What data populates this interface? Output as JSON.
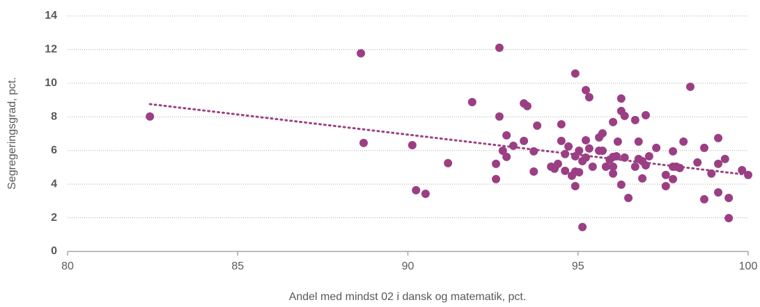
{
  "chart_data": {
    "type": "scatter",
    "x_label": "Andel med mindst 02 i dansk og matematik, pct.",
    "y_label": "Segregeringsgrad, pct.",
    "color": "#9b3f84",
    "grid": true,
    "xlim": [
      80,
      100
    ],
    "xticks": [
      80,
      85,
      90,
      95,
      100
    ],
    "ylim": [
      0,
      14
    ],
    "yticks": [
      0,
      2,
      4,
      6,
      8,
      10,
      12,
      14
    ],
    "x": [
      82.42,
      88.62,
      88.7,
      90.13,
      90.24,
      90.52,
      91.18,
      91.89,
      92.69,
      92.69,
      92.59,
      92.59,
      92.79,
      92.9,
      92.9,
      93.1,
      93.41,
      93.51,
      93.41,
      93.7,
      93.7,
      93.8,
      94.51,
      94.51,
      94.62,
      94.21,
      94.31,
      94.41,
      94.62,
      94.72,
      94.82,
      94.92,
      94.92,
      94.92,
      95.03,
      95.13,
      94.92,
      95.03,
      95.13,
      95.23,
      95.33,
      95.23,
      95.23,
      95.33,
      95.43,
      95.62,
      95.62,
      95.72,
      95.72,
      95.82,
      95.93,
      96.03,
      96.03,
      96.03,
      96.03,
      96.13,
      96.17,
      96.27,
      96.27,
      96.37,
      96.37,
      96.27,
      96.48,
      96.68,
      96.68,
      96.78,
      96.78,
      96.89,
      96.89,
      96.99,
      96.99,
      97.09,
      97.3,
      97.58,
      97.58,
      97.79,
      97.79,
      97.79,
      97.89,
      97.99,
      98.1,
      98.3,
      98.51,
      98.71,
      98.71,
      98.92,
      99.12,
      99.12,
      99.12,
      99.32,
      99.43,
      99.43,
      99.82,
      100
    ],
    "values": [
      8.02,
      11.78,
      6.45,
      6.32,
      3.64,
      3.43,
      5.25,
      8.88,
      12.11,
      8.02,
      5.21,
      4.3,
      5.99,
      5.62,
      6.9,
      6.28,
      8.8,
      8.64,
      6.57,
      5.95,
      4.75,
      7.48,
      7.56,
      6.57,
      4.79,
      5.04,
      4.92,
      5.21,
      5.79,
      6.24,
      4.5,
      10.58,
      3.88,
      5.66,
      5.99,
      5.37,
      4.75,
      4.71,
      1.45,
      9.59,
      9.17,
      6.61,
      5.58,
      6.12,
      5.04,
      5.99,
      6.78,
      7.02,
      5.99,
      5.04,
      5.45,
      7.69,
      5.62,
      5.04,
      4.63,
      5.66,
      6.53,
      9.09,
      8.35,
      8.06,
      5.58,
      3.97,
      3.18,
      7.81,
      5.04,
      6.53,
      5.5,
      5.37,
      4.34,
      8.1,
      5.12,
      5.66,
      6.16,
      4.55,
      3.88,
      5.95,
      5.04,
      4.3,
      5.04,
      4.96,
      6.53,
      9.79,
      5.29,
      6.16,
      3.1,
      4.63,
      6.74,
      5.21,
      3.51,
      5.5,
      3.18,
      1.98,
      4.83,
      4.55
    ],
    "trendline": {
      "x": [
        82.42,
        100
      ],
      "values": [
        8.76,
        4.55
      ]
    }
  }
}
